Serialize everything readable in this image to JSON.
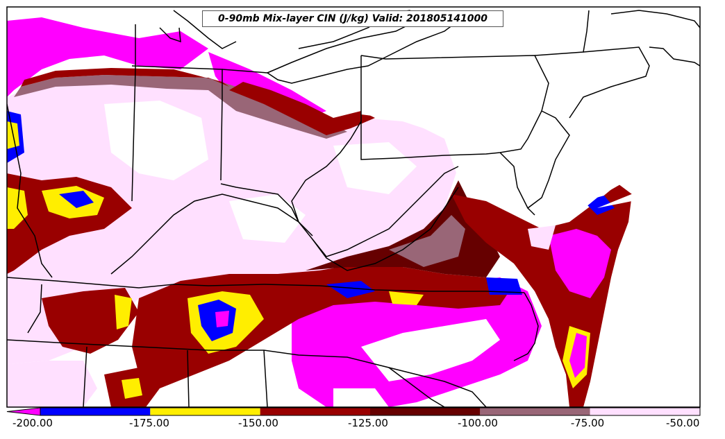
{
  "title": "0-90mb Mix-layer CIN (J/kg) Valid: 201805141000",
  "colorbar": {
    "ticks": [
      "-200.00",
      "-175.00",
      "-150.00",
      "-125.00",
      "-100.00",
      "-75.00",
      "-50.00"
    ],
    "bins": [
      {
        "from": -200,
        "to": -175,
        "color": "#0000ff"
      },
      {
        "from": -175,
        "to": -150,
        "color": "#ffee00"
      },
      {
        "from": -150,
        "to": -125,
        "color": "#990000"
      },
      {
        "from": -125,
        "to": -100,
        "color": "#660000"
      },
      {
        "from": -100,
        "to": -75,
        "color": "#996677"
      },
      {
        "from": -75,
        "to": -50,
        "color": "#ffe0ff"
      }
    ],
    "under_color": "#ff00ff"
  },
  "colors": {
    "magenta": "#ff00ff",
    "blue": "#0000ff",
    "yellow": "#ffee00",
    "red": "#990000",
    "maroon": "#660000",
    "mauve": "#996677",
    "pink": "#ffe0ff",
    "white": "#ffffff",
    "border": "#000000"
  }
}
